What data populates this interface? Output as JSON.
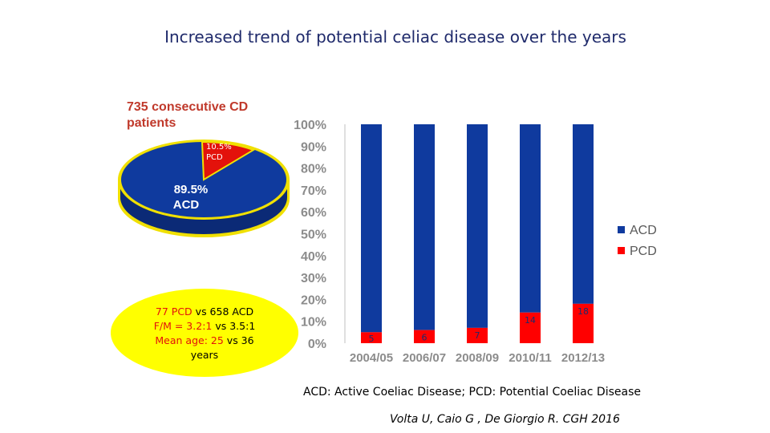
{
  "title": "Increased trend of potential celiac disease over the years",
  "pie": {
    "label": "735 consecutive CD patients",
    "slices": [
      {
        "name": "ACD",
        "pct_text": "89.5%",
        "value": 89.5,
        "color": "#0f3a9e"
      },
      {
        "name": "PCD",
        "pct_text": "10.5%",
        "value": 10.5,
        "color": "#e3120b"
      }
    ],
    "outline_color": "#f0e000"
  },
  "stats": {
    "line1": {
      "a": "77 PCD",
      "b": "vs 658 ACD"
    },
    "line2": {
      "a": "F/M = 3.2:1",
      "b": "vs 3.5:1"
    },
    "line3": {
      "a": "Mean age: 25",
      "b": "vs 36"
    },
    "line4": "years",
    "bg_color": "#ffff00"
  },
  "chart_data": {
    "type": "bar",
    "stacked": true,
    "categories": [
      "2004/05",
      "2006/07",
      "2008/09",
      "2010/11",
      "2012/13"
    ],
    "series": [
      {
        "name": "PCD",
        "values": [
          5,
          6,
          7,
          14,
          18
        ],
        "labels": [
          "5",
          "6",
          "7",
          "14",
          "18"
        ],
        "color": "#ff0000"
      },
      {
        "name": "ACD",
        "values": [
          95,
          94,
          93,
          86,
          82
        ],
        "color": "#0f3a9e"
      }
    ],
    "ylim": [
      0,
      100
    ],
    "yticks": [
      "0%",
      "10%",
      "20%",
      "30%",
      "40%",
      "50%",
      "60%",
      "70%",
      "80%",
      "90%",
      "100%"
    ],
    "legend": [
      {
        "name": "ACD",
        "color": "#0f3a9e"
      },
      {
        "name": "PCD",
        "color": "#ff0000"
      }
    ],
    "legend_position": "right"
  },
  "caption": "ACD: Active Coeliac Disease; PCD: Potential Coeliac Disease",
  "citation": "Volta U, Caio G , De Giorgio R. CGH 2016"
}
